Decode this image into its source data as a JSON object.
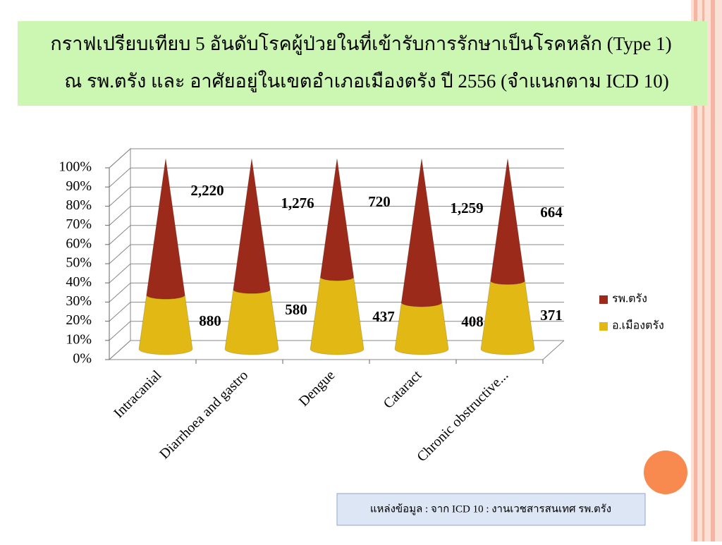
{
  "chart_data": {
    "type": "cone-stacked-100",
    "title": [
      "กราฟเปรียบเทียบ 5 อันดับโรคผู้ป่วยในที่เข้ารับการรักษาเป็นโรคหลัก (Type 1)",
      "ณ รพ.ตรัง และ อาศัยอยู่ในเขตอำเภอเมืองตรัง ปี 2556 (จำแนกตาม ICD 10)"
    ],
    "categories": [
      "Intracanial",
      "Diarrhoea and gastro",
      "Dengue",
      "Cataract",
      "Chronic obstructive..."
    ],
    "series": [
      {
        "name": "รพ.ตรัง",
        "color": "#9b2a1a",
        "values": [
          2220,
          1276,
          720,
          1259,
          664
        ],
        "value_labels": [
          "2,220",
          "1,276",
          "720",
          "1,259",
          "664"
        ]
      },
      {
        "name": "อ.เมืองตรัง",
        "color": "#e2b815",
        "values": [
          880,
          580,
          437,
          408,
          371
        ]
      }
    ],
    "ylim": [
      0,
      100
    ],
    "yticks": [
      {
        "value": 0,
        "label": "0%"
      },
      {
        "value": 10,
        "label": "10%"
      },
      {
        "value": 20,
        "label": "20%"
      },
      {
        "value": 30,
        "label": "30%"
      },
      {
        "value": 40,
        "label": "40%"
      },
      {
        "value": 50,
        "label": "50%"
      },
      {
        "value": 60,
        "label": "60%"
      },
      {
        "value": 70,
        "label": "70%"
      },
      {
        "value": 80,
        "label": "80%"
      },
      {
        "value": 90,
        "label": "90%"
      },
      {
        "value": 100,
        "label": "100%"
      }
    ],
    "grid": true,
    "legend": "right",
    "source": "แหล่งข้อมูล : จาก ICD 10 : งานเวชสารสนเทศ รพ.ตรัง"
  }
}
